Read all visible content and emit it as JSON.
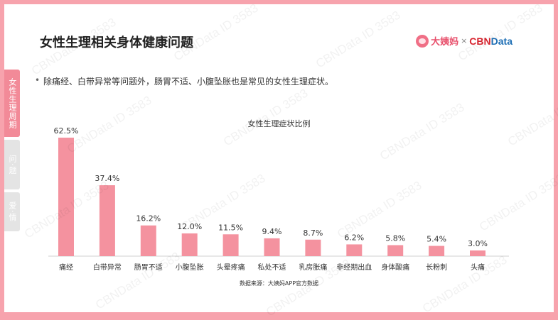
{
  "slide": {
    "title": "女性生理相关身体健康问题",
    "bullet": "除痛经、白带异常等问题外，肠胃不适、小腹坠胀也是常见的女性生理症状。",
    "source": "数据来源：大姨妈APP官方数据",
    "watermark": "CBNData ID 3583"
  },
  "logo": {
    "brand": "大姨妈",
    "separator": "×",
    "cbn_part1": "CBN",
    "cbn_part2": "Data"
  },
  "side_tabs": [
    {
      "label": "女性生理周期",
      "active": true
    },
    {
      "label": "问·题",
      "active": false
    },
    {
      "label": "爱·情",
      "active": false
    }
  ],
  "chart_data": {
    "type": "bar",
    "title": "女性生理症状比例",
    "categories": [
      "痛经",
      "白带异常",
      "肠胃不适",
      "小腹坠胀",
      "头晕疼痛",
      "私处不适",
      "乳房胀痛",
      "非经期出血",
      "身体酸痛",
      "长粉刺",
      "头痛"
    ],
    "values": [
      62.5,
      37.4,
      16.2,
      12.0,
      11.5,
      9.4,
      8.7,
      6.2,
      5.8,
      5.4,
      3.0
    ],
    "value_labels": [
      "62.5%",
      "37.4%",
      "16.2%",
      "12.0%",
      "11.5%",
      "9.4%",
      "8.7%",
      "6.2%",
      "5.8%",
      "5.4%",
      "3.0%"
    ],
    "ylim": [
      0,
      62.5
    ],
    "bar_color": "#f4929f",
    "grid": false
  }
}
